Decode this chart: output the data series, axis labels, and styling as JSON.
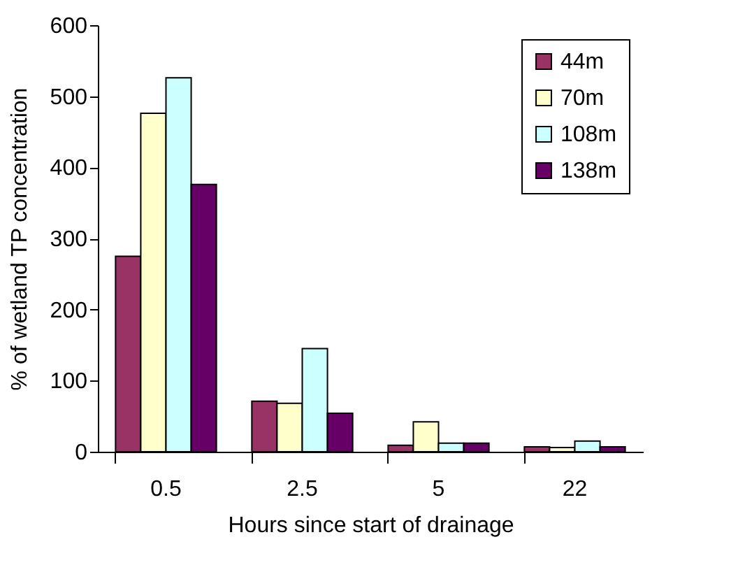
{
  "chart_data": {
    "type": "bar",
    "xlabel": "Hours since start of drainage",
    "ylabel": "% of wetland TP concentration",
    "categories": [
      "0.5",
      "2.5",
      "5",
      "22"
    ],
    "series": [
      {
        "name": "44m",
        "color": "#993366",
        "values": [
          275,
          71,
          9,
          7
        ]
      },
      {
        "name": "70m",
        "color": "#ffffcc",
        "values": [
          476,
          68,
          42,
          6
        ]
      },
      {
        "name": "108m",
        "color": "#ccffff",
        "values": [
          526,
          145,
          12,
          15
        ]
      },
      {
        "name": "138m",
        "color": "#660066",
        "values": [
          376,
          54,
          12,
          7
        ]
      }
    ],
    "ylim": [
      0,
      600
    ],
    "yticks": [
      0,
      100,
      200,
      300,
      400,
      500,
      600
    ],
    "grid": false,
    "legend": "top right"
  }
}
